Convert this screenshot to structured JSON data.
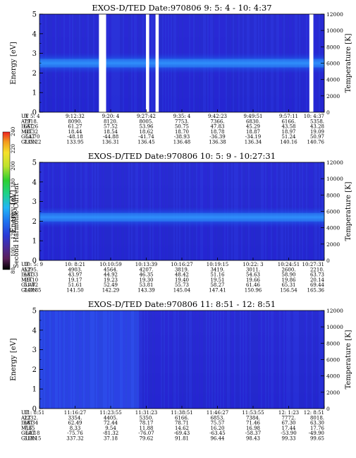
{
  "colorbar": {
    "label": "Second Harmonic Current",
    "ticks": [
      "80",
      "100",
      "120",
      "140",
      "160",
      "180",
      "200",
      "220",
      "240"
    ]
  },
  "chart_data": [
    {
      "type": "heatmap",
      "title": "EXOS-D/TED   Date:970806  9: 5: 4 - 10: 4:37",
      "ylabel": "Energy [eV]",
      "ylim": [
        0,
        5
      ],
      "yticks": [
        "0",
        "1",
        "2",
        "3",
        "4",
        "5"
      ],
      "y2label": "Temperature [K]",
      "y2lim": [
        0,
        12000
      ],
      "y2ticks": [
        "0",
        "2000",
        "4000",
        "6000",
        "8000",
        "10000",
        "12000"
      ],
      "row_labels": [
        "UT",
        "ALT",
        "ILAT",
        "MLT",
        "GLAT",
        "GLON"
      ],
      "columns": [
        [
          "9: 5: 4",
          "7918.",
          "65.26",
          "18.32",
          "-51.70",
          "135.22"
        ],
        [
          "9:12:32",
          "8090.",
          "61.27",
          "18.44",
          "-48.18",
          "133.95"
        ],
        [
          "9:20: 4",
          "8120.",
          "57.52",
          "18.54",
          "-44.88",
          "136.31"
        ],
        [
          "9:27:42",
          "8005.",
          "53.96",
          "18.62",
          "-41.74",
          "136.45"
        ],
        [
          "9:35: 4",
          "7753.",
          "50.75",
          "18.70",
          "-38.93",
          "136.48"
        ],
        [
          "9:42:23",
          "7366.",
          "47.83",
          "18.78",
          "-36.39",
          "136.38"
        ],
        [
          "9:49:51",
          "6830.",
          "45.29",
          "18.87",
          "-34.19",
          "136.34"
        ],
        [
          "9:57:11",
          "6166.",
          "43.58",
          "18.97",
          "51.24",
          "140.16"
        ],
        [
          "10: 4:37",
          "5358.",
          "43.28",
          "19.09",
          "50.97",
          "140.76"
        ]
      ],
      "band_center_ev": 2.5,
      "data_gaps_ut": [
        [
          "9:17:30",
          "9:19:00"
        ],
        [
          "9:27:20",
          "9:28:00"
        ],
        [
          "9:29:20",
          "9:30:00"
        ],
        [
          "10: 1:30",
          "10: 2:20"
        ]
      ]
    },
    {
      "type": "heatmap",
      "title": "EXOS-D/TED   Date:970806  10: 5: 9 - 10:27:31",
      "ylabel": "Energy [eV]",
      "ylim": [
        0,
        5
      ],
      "yticks": [
        "0",
        "1",
        "2",
        "3",
        "4",
        "5"
      ],
      "y2label": "Temperature [K]",
      "y2lim": [
        0,
        12000
      ],
      "y2ticks": [
        "0",
        "2000",
        "4000",
        "6000",
        "8000",
        "10000",
        "12000"
      ],
      "row_labels": [
        "UT",
        "ALT",
        "ILAT",
        "MLT",
        "GLAT",
        "GLON"
      ],
      "columns": [
        [
          "10: 5: 9",
          "5295.",
          "43.33",
          "19.10",
          "51.02",
          "140.85"
        ],
        [
          "10: 8:21",
          "4903.",
          "43.97",
          "19.17",
          "51.61",
          "141.50"
        ],
        [
          "10:10:59",
          "4564.",
          "44.92",
          "19.23",
          "52.49",
          "142.29"
        ],
        [
          "10:13:39",
          "4207.",
          "46.35",
          "19.30",
          "53.81",
          "143.39"
        ],
        [
          "10:16:27",
          "3819.",
          "48.42",
          "19.40",
          "55.73",
          "145.04"
        ],
        [
          "10:19:15",
          "3419.",
          "51.16",
          "19.51",
          "58.27",
          "147.41"
        ],
        [
          "10:22: 3",
          "3011.",
          "54.63",
          "19.66",
          "61.46",
          "150.96"
        ],
        [
          "10:24:51",
          "2600.",
          "58.90",
          "19.86",
          "65.31",
          "156.54"
        ],
        [
          "10:27:31",
          "2210.",
          "63.73",
          "20.14",
          "69.44",
          "165.36"
        ]
      ],
      "band_center_ev": 2.2
    },
    {
      "type": "heatmap",
      "title": "EXOS-D/TED   Date:970806  11: 8:51 - 12: 8:51",
      "ylabel": "Energy [eV]",
      "ylim": [
        0,
        5
      ],
      "yticks": [
        "0",
        "1",
        "2",
        "3",
        "4",
        "5"
      ],
      "y2label": "Temperature [K]",
      "y2lim": [
        0,
        12000
      ],
      "y2ticks": [
        "0",
        "2000",
        "4000",
        "6000",
        "8000",
        "10000",
        "12000"
      ],
      "row_labels": [
        "UT",
        "ALT",
        "ILAT",
        "MLT",
        "GLAT",
        "GLON"
      ],
      "columns": [
        [
          "11: 8:51",
          "2232.",
          "48.34",
          "7.65",
          "-60.18",
          "318.15"
        ],
        [
          "11:16:27",
          "3354.",
          "62.49",
          "8.33",
          "-75.76",
          "337.32"
        ],
        [
          "11:23:55",
          "4405.",
          "72.44",
          "9.54",
          "-81.32",
          "37.18"
        ],
        [
          "11:31:23",
          "5350.",
          "78.17",
          "11.88",
          "-76.07",
          "79.62"
        ],
        [
          "11:38:51",
          "6166.",
          "78.71",
          "14.62",
          "-69.43",
          "91.81"
        ],
        [
          "11:46:27",
          "6853.",
          "75.57",
          "16.20",
          "-63.45",
          "96.44"
        ],
        [
          "11:53:55",
          "7384.",
          "71.46",
          "16.98",
          "-58.37",
          "98.43"
        ],
        [
          "12: 1:23",
          "7772.",
          "67.30",
          "17.44",
          "-53.90",
          "99.33"
        ],
        [
          "12: 8:51",
          "8018.",
          "63.30",
          "17.76",
          "-49.90",
          "99.65"
        ]
      ]
    }
  ]
}
